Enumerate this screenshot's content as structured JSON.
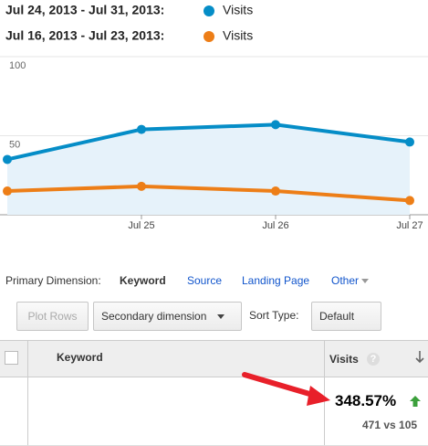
{
  "chart_data": {
    "type": "line",
    "categories": [
      null,
      "Jul 25",
      "Jul 26",
      "Jul 27"
    ],
    "series": [
      {
        "name": "Visits",
        "date_range": "Jul 24, 2013 - Jul 31, 2013:",
        "color": "#058dc7",
        "values": [
          35,
          54,
          57,
          46
        ]
      },
      {
        "name": "Visits",
        "date_range": "Jul 16, 2013 - Jul 23, 2013:",
        "color": "#ed7e17",
        "values": [
          15,
          18,
          15,
          9
        ]
      }
    ],
    "ylim": [
      0,
      100
    ],
    "yticks": [
      50,
      100
    ],
    "grid": true
  },
  "dimension_bar": {
    "label": "Primary Dimension:",
    "options": [
      "Keyword",
      "Source",
      "Landing Page",
      "Other"
    ]
  },
  "toolbar": {
    "plot_rows": "Plot Rows",
    "secondary_dimension": "Secondary dimension",
    "sort_type_label": "Sort Type:",
    "sort_type": "Default"
  },
  "table": {
    "headers": [
      "Keyword",
      "Visits"
    ],
    "help": "?",
    "rows": [
      {
        "change": "348.57%",
        "comparison": "471 vs 105"
      }
    ]
  }
}
